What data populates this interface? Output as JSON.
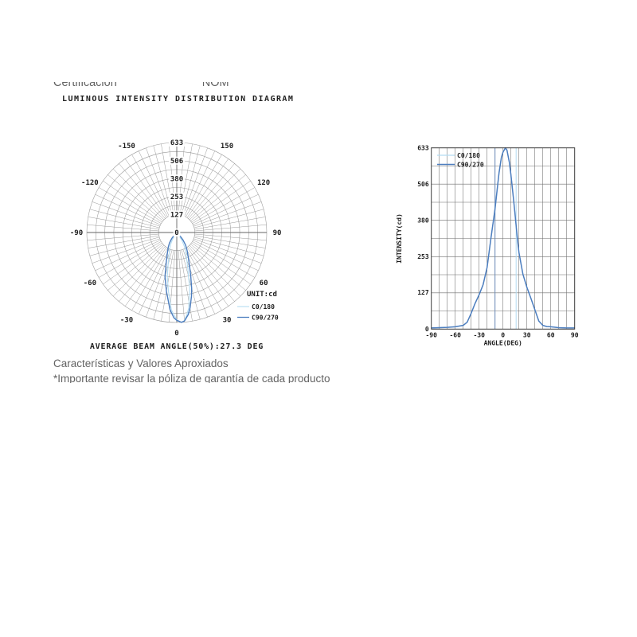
{
  "header": {
    "left": "Certificación",
    "right": "NOM"
  },
  "title": "LUMINOUS INTENSITY DISTRIBUTION DIAGRAM",
  "footer": {
    "line1": "Características y Valores Aproxiados",
    "line2": "*Importante revisar la póliza de garantía de cada producto"
  },
  "colors": {
    "c0_180": "#b3dcf2",
    "c90_270": "#4d7ebf",
    "marker_dark": "#6b8cb8",
    "grid_polar": "#999999",
    "grid_cart": "#6e6e6e",
    "frame": "#3a3a3a",
    "muted_text": "#636363"
  },
  "chart_data": [
    {
      "type": "polar",
      "title": "LUMINOUS INTENSITY DISTRIBUTION DIAGRAM",
      "unit_label": "UNIT:cd",
      "ring_labels": [
        0,
        127,
        253,
        380,
        506,
        633
      ],
      "ring_max": 633,
      "ring_step": 63.3,
      "angle_labels": [
        0,
        30,
        60,
        90,
        120,
        150,
        -30,
        -60,
        -90,
        -120,
        -150
      ],
      "angle_grid_step_deg": 5,
      "bottom_axis_label": "0",
      "caption": "AVERAGE BEAM ANGLE(50%):27.3 DEG",
      "average_beam_angle_deg": 27.3,
      "legend_position": "right-bottom",
      "series": [
        {
          "name": "C0/180",
          "color": "#b3dcf2",
          "points": [
            [
              -73,
              4
            ],
            [
              -49,
              8
            ],
            [
              -40,
              13
            ],
            [
              -36,
              24
            ],
            [
              -32,
              55
            ],
            [
              -28,
              90
            ],
            [
              -24,
              120
            ],
            [
              -20,
              155
            ],
            [
              -16,
              215
            ],
            [
              -12,
              320
            ],
            [
              -8,
              420
            ],
            [
              -4,
              545
            ],
            [
              0,
              615
            ],
            [
              3,
              633
            ],
            [
              5,
              622
            ],
            [
              7,
              582
            ],
            [
              9,
              538
            ],
            [
              13,
              405
            ],
            [
              15,
              318
            ],
            [
              17,
              268
            ],
            [
              21,
              192
            ],
            [
              25,
              146
            ],
            [
              29,
              108
            ],
            [
              33,
              68
            ],
            [
              37,
              28
            ],
            [
              42,
              13
            ],
            [
              50,
              8
            ],
            [
              58,
              5
            ],
            [
              74,
              4
            ]
          ]
        },
        {
          "name": "C90/270",
          "color": "#4d7ebf",
          "points": [
            [
              -90,
              4
            ],
            [
              -80,
              5
            ],
            [
              -70,
              6
            ],
            [
              -60,
              8
            ],
            [
              -50,
              13
            ],
            [
              -45,
              24
            ],
            [
              -40,
              55
            ],
            [
              -35,
              90
            ],
            [
              -30,
              120
            ],
            [
              -25,
              155
            ],
            [
              -20,
              215
            ],
            [
              -15,
              320
            ],
            [
              -10,
              420
            ],
            [
              -5,
              545
            ],
            [
              -2,
              600
            ],
            [
              0,
              618
            ],
            [
              3,
              633
            ],
            [
              5,
              625
            ],
            [
              8,
              582
            ],
            [
              10,
              538
            ],
            [
              13,
              460
            ],
            [
              15,
              405
            ],
            [
              18,
              318
            ],
            [
              20,
              268
            ],
            [
              25,
              192
            ],
            [
              30,
              146
            ],
            [
              35,
              108
            ],
            [
              40,
              68
            ],
            [
              45,
              28
            ],
            [
              50,
              13
            ],
            [
              55,
              9
            ],
            [
              60,
              8
            ],
            [
              70,
              5
            ],
            [
              80,
              4
            ],
            [
              90,
              4
            ]
          ]
        }
      ]
    },
    {
      "type": "line",
      "xlabel": "ANGLE(DEG)",
      "ylabel": "INTENSITY(cd)",
      "xticks": [
        -90,
        -60,
        -30,
        0,
        30,
        60,
        90
      ],
      "yticks": [
        0,
        127,
        253,
        380,
        506,
        633
      ],
      "xlim": [
        -90,
        90
      ],
      "ylim": [
        0,
        633
      ],
      "x_grid_step": 10,
      "y_grid_step": 63.3,
      "grid": true,
      "legend_position": "top-left",
      "beam_markers": [
        {
          "x": -10,
          "color": "#6b8cb8"
        },
        {
          "x": 16.5,
          "color": "#b3dcf2"
        }
      ],
      "series": [
        {
          "name": "C0/180",
          "color": "#b3dcf2",
          "points": [
            [
              -90,
              4
            ],
            [
              -80,
              5
            ],
            [
              -70,
              6
            ],
            [
              -60,
              8
            ],
            [
              -50,
              13
            ],
            [
              -45,
              24
            ],
            [
              -40,
              55
            ],
            [
              -35,
              90
            ],
            [
              -30,
              120
            ],
            [
              -25,
              155
            ],
            [
              -20,
              215
            ],
            [
              -15,
              320
            ],
            [
              -10,
              420
            ],
            [
              -5,
              545
            ],
            [
              -2,
              600
            ],
            [
              0,
              618
            ],
            [
              3,
              633
            ],
            [
              5,
              625
            ],
            [
              8,
              582
            ],
            [
              10,
              538
            ],
            [
              13,
              460
            ],
            [
              15,
              405
            ],
            [
              18,
              318
            ],
            [
              20,
              268
            ],
            [
              25,
              192
            ],
            [
              30,
              146
            ],
            [
              35,
              108
            ],
            [
              40,
              68
            ],
            [
              45,
              28
            ],
            [
              50,
              13
            ],
            [
              55,
              9
            ],
            [
              60,
              8
            ],
            [
              70,
              5
            ],
            [
              80,
              4
            ],
            [
              90,
              4
            ]
          ]
        },
        {
          "name": "C90/270",
          "color": "#4d7ebf",
          "points": [
            [
              -90,
              4
            ],
            [
              -80,
              5
            ],
            [
              -70,
              6
            ],
            [
              -60,
              8
            ],
            [
              -50,
              13
            ],
            [
              -45,
              24
            ],
            [
              -40,
              55
            ],
            [
              -35,
              90
            ],
            [
              -30,
              120
            ],
            [
              -25,
              155
            ],
            [
              -20,
              215
            ],
            [
              -15,
              320
            ],
            [
              -10,
              420
            ],
            [
              -5,
              545
            ],
            [
              -2,
              600
            ],
            [
              0,
              618
            ],
            [
              3,
              633
            ],
            [
              5,
              625
            ],
            [
              8,
              582
            ],
            [
              10,
              538
            ],
            [
              13,
              460
            ],
            [
              15,
              405
            ],
            [
              18,
              318
            ],
            [
              20,
              268
            ],
            [
              25,
              192
            ],
            [
              30,
              146
            ],
            [
              35,
              108
            ],
            [
              40,
              68
            ],
            [
              45,
              28
            ],
            [
              50,
              13
            ],
            [
              55,
              9
            ],
            [
              60,
              8
            ],
            [
              70,
              5
            ],
            [
              80,
              4
            ],
            [
              90,
              4
            ]
          ]
        }
      ]
    }
  ]
}
